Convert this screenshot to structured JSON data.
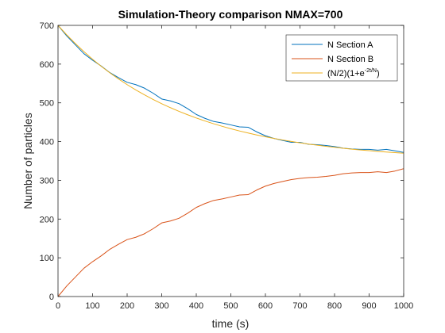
{
  "chart_data": {
    "type": "line",
    "title": "Simulation-Theory comparison NMAX=700",
    "xlabel": "time (s)",
    "ylabel": "Number of particles",
    "xlim": [
      0,
      1000
    ],
    "ylim": [
      0,
      700
    ],
    "xticks": [
      0,
      100,
      200,
      300,
      400,
      500,
      600,
      700,
      800,
      900,
      1000
    ],
    "yticks": [
      0,
      100,
      200,
      300,
      400,
      500,
      600,
      700
    ],
    "grid": false,
    "legend_position": "top-right",
    "legend": {
      "entry_a": "N Section A",
      "entry_b": "N Section B",
      "entry_theory_base": "(N/2)(1+e",
      "entry_theory_exp": "-2t/N",
      "entry_theory_close": ")"
    },
    "series": [
      {
        "name": "N Section A",
        "color": "#0072BD",
        "x": [
          0,
          25,
          50,
          75,
          100,
          125,
          150,
          175,
          200,
          225,
          250,
          275,
          300,
          325,
          350,
          375,
          400,
          425,
          450,
          475,
          500,
          525,
          550,
          575,
          600,
          625,
          650,
          675,
          700,
          725,
          750,
          775,
          800,
          825,
          850,
          875,
          900,
          925,
          950,
          975,
          1000
        ],
        "y": [
          700,
          673,
          650,
          627,
          610,
          595,
          578,
          565,
          553,
          547,
          538,
          525,
          510,
          505,
          498,
          485,
          470,
          460,
          452,
          448,
          443,
          438,
          437,
          425,
          415,
          408,
          403,
          398,
          398,
          393,
          392,
          390,
          387,
          383,
          381,
          380,
          380,
          378,
          380,
          376,
          372
        ]
      },
      {
        "name": "N Section B",
        "color": "#D95319",
        "x": [
          0,
          25,
          50,
          75,
          100,
          125,
          150,
          175,
          200,
          225,
          250,
          275,
          300,
          325,
          350,
          375,
          400,
          425,
          450,
          475,
          500,
          525,
          550,
          575,
          600,
          625,
          650,
          675,
          700,
          725,
          750,
          775,
          800,
          825,
          850,
          875,
          900,
          925,
          950,
          975,
          1000
        ],
        "y": [
          0,
          27,
          50,
          73,
          90,
          105,
          122,
          135,
          147,
          153,
          162,
          175,
          190,
          195,
          202,
          215,
          230,
          240,
          248,
          252,
          257,
          262,
          263,
          275,
          285,
          292,
          297,
          302,
          305,
          307,
          308,
          310,
          313,
          317,
          319,
          320,
          320,
          322,
          320,
          324,
          330
        ]
      },
      {
        "name": "(N/2)(1+e^-2t/N)",
        "color": "#EDB120",
        "x": [
          0,
          25,
          50,
          75,
          100,
          125,
          150,
          175,
          200,
          225,
          250,
          275,
          300,
          325,
          350,
          375,
          400,
          425,
          450,
          475,
          500,
          525,
          550,
          575,
          600,
          625,
          650,
          675,
          700,
          725,
          750,
          775,
          800,
          825,
          850,
          875,
          900,
          925,
          950,
          975,
          1000
        ],
        "y": [
          700,
          675.7,
          653.1,
          632.1,
          612.5,
          594.3,
          577.4,
          561.7,
          547.0,
          533.4,
          520.7,
          508.8,
          497.8,
          487.6,
          478.1,
          469.2,
          460.9,
          453.2,
          446.1,
          439.4,
          433.2,
          427.4,
          422.1,
          417.1,
          412.4,
          408.1,
          404.1,
          400.3,
          396.8,
          393.6,
          390.6,
          387.8,
          385.2,
          382.8,
          380.5,
          378.4,
          376.5,
          374.6,
          373.0,
          371.4,
          369.9
        ]
      }
    ]
  }
}
